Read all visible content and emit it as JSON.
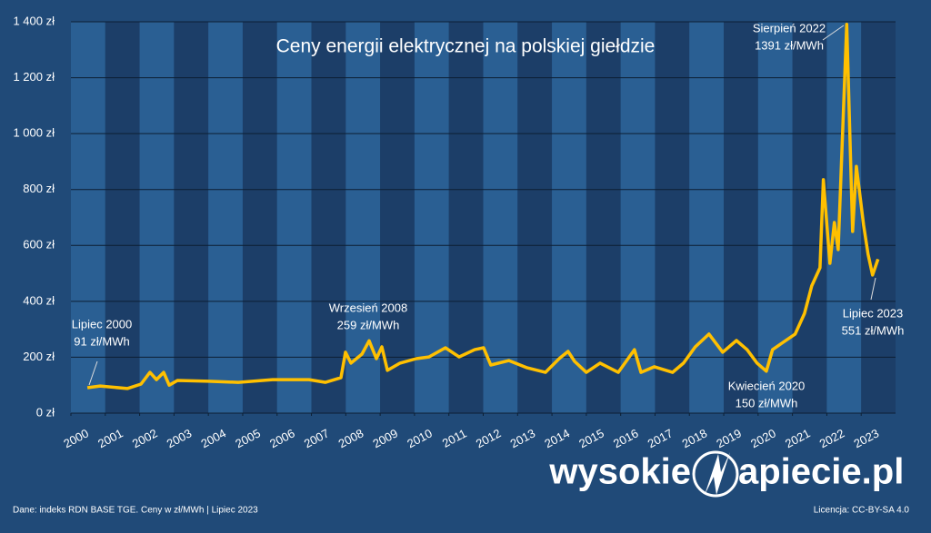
{
  "chart_data": {
    "type": "line",
    "title": "Ceny energii elektrycznej na polskiej giełdzie",
    "x": [
      2000.48,
      2000.85,
      2001.64,
      2002.04,
      2002.3,
      2002.49,
      2002.7,
      2002.86,
      2003.1,
      2004.02,
      2004.87,
      2005.87,
      2006.93,
      2007.41,
      2007.86,
      2007.99,
      2008.15,
      2008.47,
      2008.68,
      2008.89,
      2009.05,
      2009.21,
      2009.58,
      2010.05,
      2010.42,
      2010.9,
      2011.3,
      2011.75,
      2012.01,
      2012.22,
      2012.75,
      2013.28,
      2013.81,
      2014.21,
      2014.47,
      2014.66,
      2015.0,
      2015.4,
      2015.93,
      2016.4,
      2016.59,
      2016.98,
      2017.51,
      2017.83,
      2018.17,
      2018.57,
      2018.97,
      2019.37,
      2019.68,
      2019.97,
      2020.24,
      2020.42,
      2020.69,
      2021.08,
      2021.35,
      2021.56,
      2021.8,
      2021.9,
      2022.09,
      2022.22,
      2022.33,
      2022.58,
      2022.75,
      2022.86,
      2023.07,
      2023.2,
      2023.33,
      2023.49
    ],
    "values": [
      91,
      97,
      88,
      104,
      146,
      120,
      146,
      100,
      117,
      114,
      110,
      120,
      120,
      110,
      127,
      218,
      179,
      211,
      259,
      195,
      237,
      153,
      179,
      195,
      201,
      234,
      201,
      227,
      234,
      172,
      188,
      162,
      146,
      195,
      221,
      185,
      146,
      179,
      146,
      227,
      146,
      166,
      146,
      179,
      237,
      283,
      218,
      260,
      227,
      179,
      150,
      227,
      250,
      283,
      357,
      455,
      520,
      835,
      536,
      682,
      585,
      1391,
      650,
      883,
      672,
      568,
      494,
      551
    ],
    "color": "#ffc000",
    "xlim": [
      2000,
      2024
    ],
    "xticks": [
      2000,
      2001,
      2002,
      2003,
      2004,
      2005,
      2006,
      2007,
      2008,
      2009,
      2010,
      2011,
      2012,
      2013,
      2014,
      2015,
      2016,
      2017,
      2018,
      2019,
      2020,
      2021,
      2022,
      2023
    ],
    "ylim": [
      0,
      1400
    ],
    "yticks": [
      {
        "value": 0,
        "label": "0 zł"
      },
      {
        "value": 200,
        "label": "200 zł"
      },
      {
        "value": 400,
        "label": "400 zł"
      },
      {
        "value": 600,
        "label": "600 zł"
      },
      {
        "value": 800,
        "label": "800 zł"
      },
      {
        "value": 1000,
        "label": "1 000 zł"
      },
      {
        "value": 1200,
        "label": "1 200 zł"
      },
      {
        "value": 1400,
        "label": "1 400 zł"
      }
    ],
    "grid": true,
    "annotations": [
      {
        "lines": [
          "Lipiec 2000",
          "91 zł/MWh"
        ]
      },
      {
        "lines": [
          "Wrzesień 2008",
          "259 zł/MWh"
        ]
      },
      {
        "lines": [
          "Kwiecień 2020",
          "150 zł/MWh"
        ]
      },
      {
        "lines": [
          "Sierpień 2022",
          "1391 zł/MWh"
        ]
      },
      {
        "lines": [
          "Lipiec 2023",
          "551 zł/MWh"
        ]
      }
    ]
  },
  "footer": {
    "source": "Dane: indeks RDN BASE TGE. Ceny w zł/MWh  | Lipiec 2023",
    "license": "Licencja: CC-BY-SA 4.0"
  },
  "logo": {
    "left": "wysokie",
    "right": "apiecie.pl"
  }
}
